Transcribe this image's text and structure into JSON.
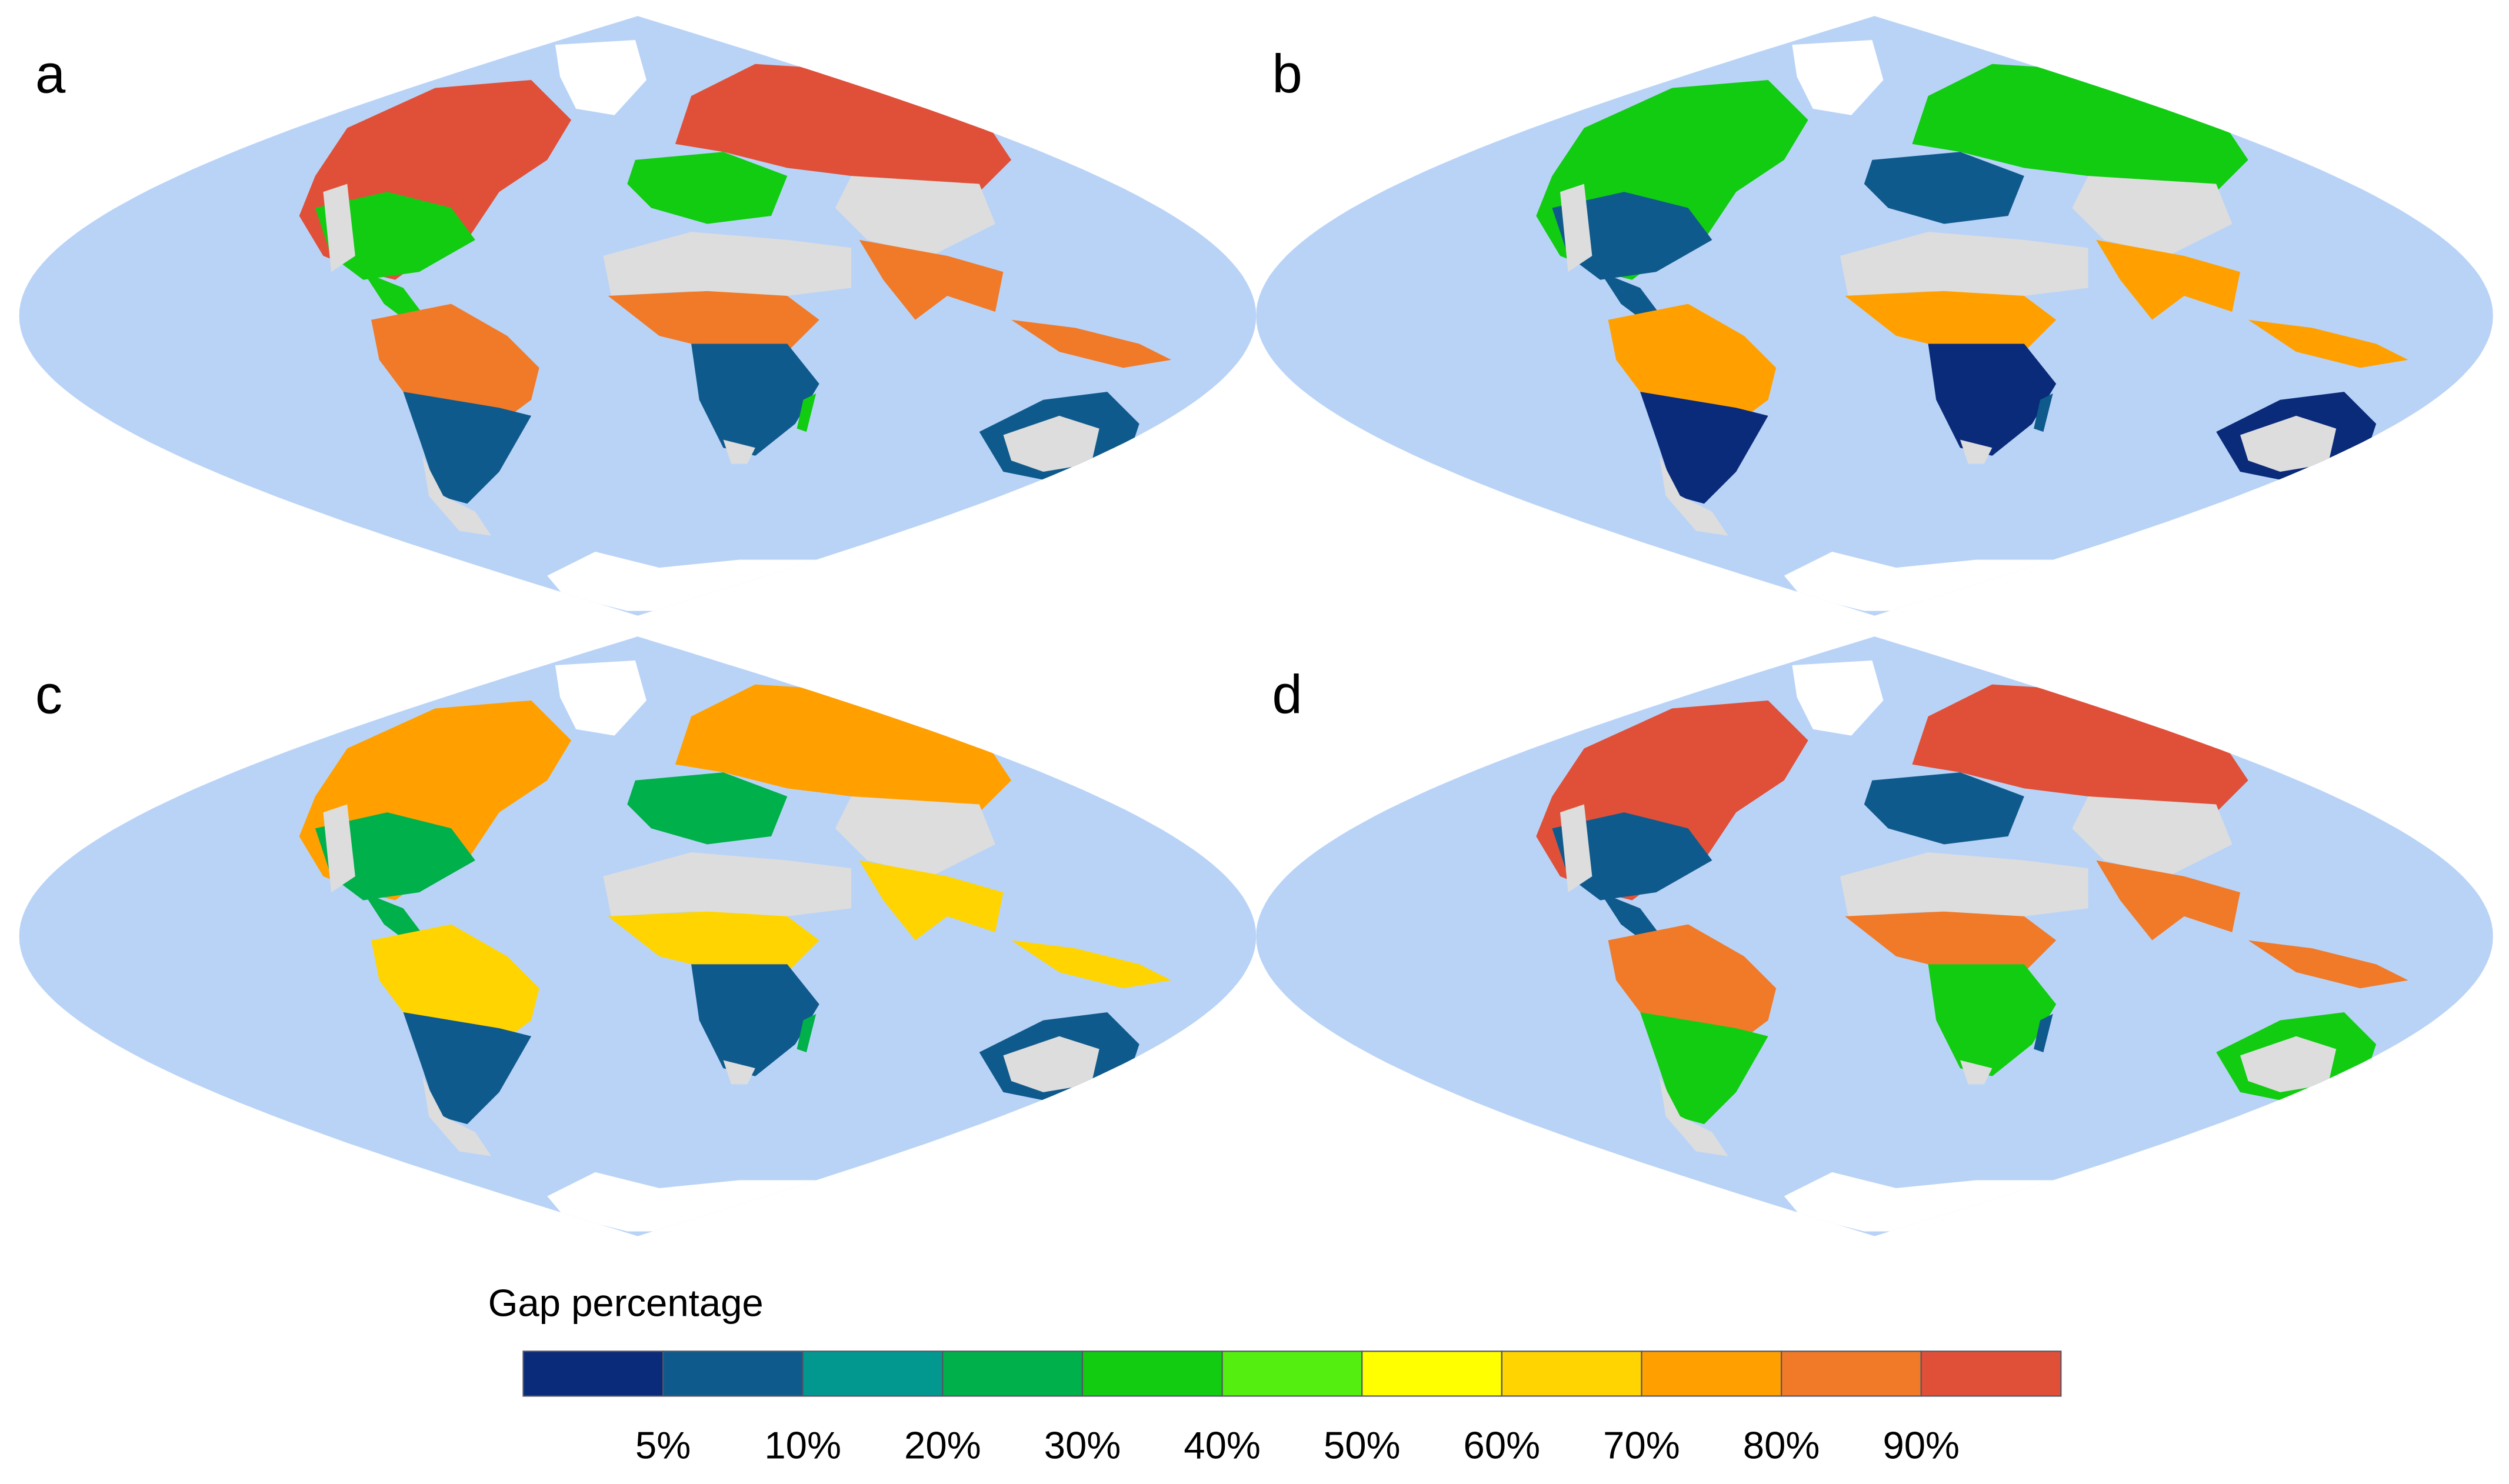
{
  "panels": [
    {
      "label": "a"
    },
    {
      "label": "b"
    },
    {
      "label": "c"
    },
    {
      "label": "d"
    }
  ],
  "legend": {
    "title": "Gap percentage",
    "colors": [
      "#0a2a7a",
      "#0f5a8c",
      "#029890",
      "#00b04a",
      "#11cc11",
      "#55ee11",
      "#ffff00",
      "#ffd400",
      "#ffa000",
      "#f07a28",
      "#e05038"
    ],
    "ticks": [
      {
        "value": 5,
        "label": "5%"
      },
      {
        "value": 10,
        "label": "10%"
      },
      {
        "value": 20,
        "label": "20%"
      },
      {
        "value": 30,
        "label": "30%"
      },
      {
        "value": 40,
        "label": "40%"
      },
      {
        "value": 50,
        "label": "50%"
      },
      {
        "value": 60,
        "label": "60%"
      },
      {
        "value": 70,
        "label": "70%"
      },
      {
        "value": 80,
        "label": "80%"
      },
      {
        "value": 90,
        "label": "90%"
      }
    ]
  }
}
